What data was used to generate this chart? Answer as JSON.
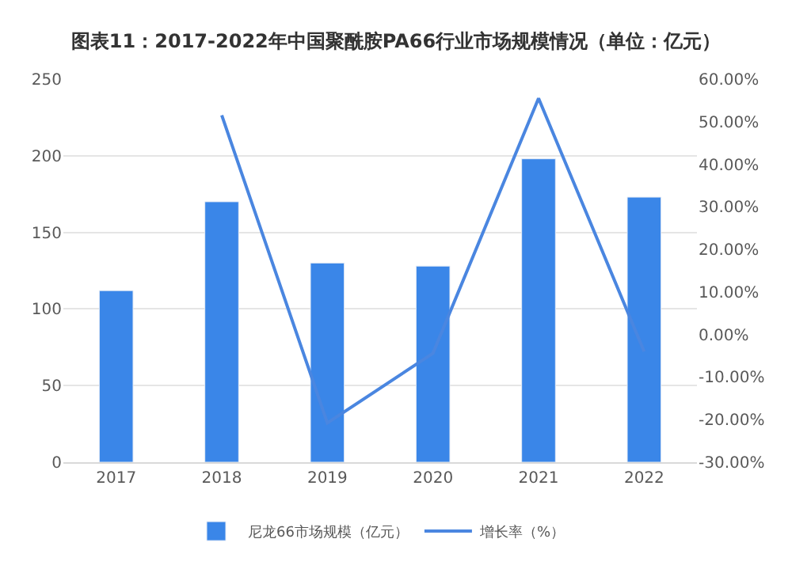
{
  "chart_data": {
    "type": "bar",
    "title": "图表11：2017-2022年中国聚酰胺PA66行业市场规模情况（单位：亿元）",
    "categories": [
      "2017",
      "2018",
      "2019",
      "2020",
      "2021",
      "2022"
    ],
    "series": [
      {
        "name": "尼龙66市场规模（亿元）",
        "color": "#3a86e8",
        "values": [
          112,
          170,
          130,
          128,
          198,
          173
        ]
      },
      {
        "name": "增长率（%）",
        "type": "line",
        "axis": "y2",
        "color": "#4a86e0",
        "values": [
          null,
          51.5,
          -20.8,
          -4.4,
          55.5,
          -4
        ]
      }
    ],
    "ylim": [
      0,
      250
    ],
    "yticks": [
      0,
      50,
      100,
      150,
      200,
      250
    ],
    "y2lim": [
      -30,
      60
    ],
    "y2ticks": [
      {
        "value": -30,
        "label": "-30.00%"
      },
      {
        "value": -20,
        "label": "-20.00%"
      },
      {
        "value": -10,
        "label": "-10.00%"
      },
      {
        "value": 0,
        "label": "0.00%"
      },
      {
        "value": 10,
        "label": "10.00%"
      },
      {
        "value": 20,
        "label": "20.00%"
      },
      {
        "value": 30,
        "label": "30.00%"
      },
      {
        "value": 40,
        "label": "40.00%"
      },
      {
        "value": 50,
        "label": "50.00%"
      },
      {
        "value": 60,
        "label": "60.00%"
      }
    ],
    "grid": "y",
    "legend": "bottom",
    "marker": "none",
    "line_style": "solid"
  }
}
